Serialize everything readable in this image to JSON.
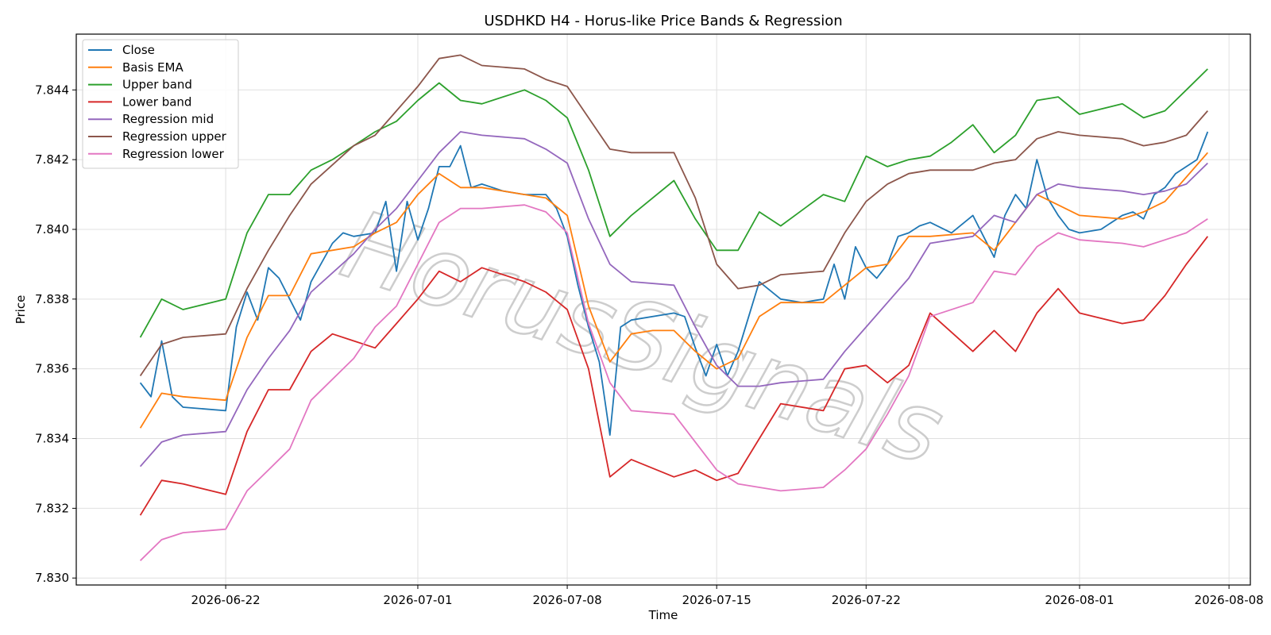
{
  "watermark": "HorusSignals",
  "chart_data": {
    "type": "line",
    "title": "USDHKD H4 - Horus-like Price Bands & Regression",
    "xlabel": "Time",
    "ylabel": "Price",
    "x_ticks": [
      "2026-06-22",
      "2026-07-01",
      "2026-07-08",
      "2026-07-15",
      "2026-07-22",
      "2026-08-01",
      "2026-08-08"
    ],
    "y_ticks": [
      "7.830",
      "7.832",
      "7.834",
      "7.836",
      "7.838",
      "7.840",
      "7.842",
      "7.844"
    ],
    "xlim": [
      "2026-06-15",
      "2026-08-09"
    ],
    "ylim": [
      7.8298,
      7.8456
    ],
    "grid": true,
    "legend_position": "top-left",
    "series": [
      {
        "name": "Close",
        "color": "#1f77b4",
        "x": [
          "2026-06-18",
          "2026-06-18T12",
          "2026-06-19",
          "2026-06-19T12",
          "2026-06-20",
          "2026-06-22",
          "2026-06-22T12",
          "2026-06-23",
          "2026-06-23T12",
          "2026-06-24",
          "2026-06-24T12",
          "2026-06-25",
          "2026-06-25T12",
          "2026-06-26",
          "2026-06-27",
          "2026-06-27T12",
          "2026-06-28",
          "2026-06-29",
          "2026-06-29T12",
          "2026-06-30",
          "2026-06-30T12",
          "2026-07-01",
          "2026-07-01T12",
          "2026-07-02",
          "2026-07-02T12",
          "2026-07-03",
          "2026-07-03T12",
          "2026-07-04",
          "2026-07-05",
          "2026-07-06",
          "2026-07-06T12",
          "2026-07-07",
          "2026-07-07T12",
          "2026-07-08",
          "2026-07-08T12",
          "2026-07-09",
          "2026-07-09T12",
          "2026-07-10",
          "2026-07-10T12",
          "2026-07-11",
          "2026-07-13",
          "2026-07-13T12",
          "2026-07-14",
          "2026-07-14T12",
          "2026-07-15",
          "2026-07-15T12",
          "2026-07-16",
          "2026-07-16T12",
          "2026-07-17",
          "2026-07-18",
          "2026-07-19",
          "2026-07-20",
          "2026-07-20T12",
          "2026-07-21",
          "2026-07-21T12",
          "2026-07-22",
          "2026-07-22T12",
          "2026-07-23",
          "2026-07-23T12",
          "2026-07-24",
          "2026-07-24T12",
          "2026-07-25",
          "2026-07-26",
          "2026-07-27",
          "2026-07-27T12",
          "2026-07-28",
          "2026-07-28T12",
          "2026-07-29",
          "2026-07-29T12",
          "2026-07-30",
          "2026-07-30T12",
          "2026-07-31",
          "2026-07-31T12",
          "2026-08-01",
          "2026-08-02",
          "2026-08-03",
          "2026-08-03T12",
          "2026-08-04",
          "2026-08-04T12",
          "2026-08-05",
          "2026-08-05T12",
          "2026-08-06",
          "2026-08-06T12",
          "2026-08-07"
        ],
        "values": [
          7.8356,
          7.8352,
          7.8368,
          7.8352,
          7.8349,
          7.8348,
          7.8372,
          7.8382,
          7.8374,
          7.8389,
          7.8386,
          7.838,
          7.8374,
          7.8385,
          7.8396,
          7.8399,
          7.8398,
          7.8399,
          7.8408,
          7.8388,
          7.8408,
          7.8397,
          7.8406,
          7.8418,
          7.8418,
          7.8424,
          7.8412,
          7.8413,
          7.8411,
          7.841,
          7.841,
          7.841,
          7.8406,
          7.8398,
          7.8384,
          7.8372,
          7.8362,
          7.8341,
          7.8372,
          7.8374,
          7.8376,
          7.8375,
          7.8366,
          7.8358,
          7.8367,
          7.8358,
          7.8365,
          7.8375,
          7.8385,
          7.838,
          7.8379,
          7.838,
          7.839,
          7.838,
          7.8395,
          7.8389,
          7.8386,
          7.839,
          7.8398,
          7.8399,
          7.8401,
          7.8402,
          7.8399,
          7.8404,
          7.8398,
          7.8392,
          7.8404,
          7.841,
          7.8406,
          7.842,
          7.8409,
          7.8404,
          7.84,
          7.8399,
          7.84,
          7.8404,
          7.8405,
          7.8403,
          7.841,
          7.8412,
          7.8416,
          7.8418,
          7.842,
          7.8428
        ]
      },
      {
        "name": "Basis EMA",
        "color": "#ff7f0e",
        "x": [
          "2026-06-18",
          "2026-06-19",
          "2026-06-20",
          "2026-06-22",
          "2026-06-23",
          "2026-06-24",
          "2026-06-25",
          "2026-06-26",
          "2026-06-27",
          "2026-06-28",
          "2026-06-29",
          "2026-06-30",
          "2026-07-01",
          "2026-07-02",
          "2026-07-03",
          "2026-07-04",
          "2026-07-06",
          "2026-07-07",
          "2026-07-08",
          "2026-07-09",
          "2026-07-10",
          "2026-07-11",
          "2026-07-12",
          "2026-07-13",
          "2026-07-14",
          "2026-07-15",
          "2026-07-16",
          "2026-07-17",
          "2026-07-18",
          "2026-07-20",
          "2026-07-21",
          "2026-07-22",
          "2026-07-23",
          "2026-07-24",
          "2026-07-25",
          "2026-07-27",
          "2026-07-28",
          "2026-07-29",
          "2026-07-30",
          "2026-07-31",
          "2026-08-01",
          "2026-08-03",
          "2026-08-04",
          "2026-08-05",
          "2026-08-06",
          "2026-08-07"
        ],
        "values": [
          7.8343,
          7.8353,
          7.8352,
          7.8351,
          7.8369,
          7.8381,
          7.8381,
          7.8393,
          7.8394,
          7.8395,
          7.8399,
          7.8402,
          7.841,
          7.8416,
          7.8412,
          7.8412,
          7.841,
          7.8409,
          7.8404,
          7.8378,
          7.8362,
          7.837,
          7.8371,
          7.8371,
          7.8365,
          7.836,
          7.8363,
          7.8375,
          7.8379,
          7.8379,
          7.8384,
          7.8389,
          7.839,
          7.8398,
          7.8398,
          7.8399,
          7.8394,
          7.8402,
          7.841,
          7.8407,
          7.8404,
          7.8403,
          7.8405,
          7.8408,
          7.8415,
          7.8422
        ]
      },
      {
        "name": "Upper band",
        "color": "#2ca02c",
        "x": [
          "2026-06-18",
          "2026-06-19",
          "2026-06-20",
          "2026-06-22",
          "2026-06-23",
          "2026-06-24",
          "2026-06-25",
          "2026-06-26",
          "2026-06-27",
          "2026-06-28",
          "2026-06-29",
          "2026-06-30",
          "2026-07-01",
          "2026-07-02",
          "2026-07-03",
          "2026-07-04",
          "2026-07-06",
          "2026-07-07",
          "2026-07-08",
          "2026-07-09",
          "2026-07-10",
          "2026-07-11",
          "2026-07-13",
          "2026-07-14",
          "2026-07-15",
          "2026-07-16",
          "2026-07-17",
          "2026-07-18",
          "2026-07-20",
          "2026-07-21",
          "2026-07-22",
          "2026-07-23",
          "2026-07-24",
          "2026-07-25",
          "2026-07-26",
          "2026-07-27",
          "2026-07-28",
          "2026-07-29",
          "2026-07-30",
          "2026-07-31",
          "2026-08-01",
          "2026-08-03",
          "2026-08-04",
          "2026-08-05",
          "2026-08-06",
          "2026-08-07"
        ],
        "values": [
          7.8369,
          7.838,
          7.8377,
          7.838,
          7.8399,
          7.841,
          7.841,
          7.8417,
          7.842,
          7.8424,
          7.8428,
          7.8431,
          7.8437,
          7.8442,
          7.8437,
          7.8436,
          7.844,
          7.8437,
          7.8432,
          7.8417,
          7.8398,
          7.8404,
          7.8414,
          7.8403,
          7.8394,
          7.8394,
          7.8405,
          7.8401,
          7.841,
          7.8408,
          7.8421,
          7.8418,
          7.842,
          7.8421,
          7.8425,
          7.843,
          7.8422,
          7.8427,
          7.8437,
          7.8438,
          7.8433,
          7.8436,
          7.8432,
          7.8434,
          7.844,
          7.8446
        ]
      },
      {
        "name": "Lower band",
        "color": "#d62728",
        "x": [
          "2026-06-18",
          "2026-06-19",
          "2026-06-20",
          "2026-06-22",
          "2026-06-23",
          "2026-06-24",
          "2026-06-25",
          "2026-06-26",
          "2026-06-27",
          "2026-06-28",
          "2026-06-29",
          "2026-06-30",
          "2026-07-01",
          "2026-07-02",
          "2026-07-03",
          "2026-07-04",
          "2026-07-06",
          "2026-07-07",
          "2026-07-08",
          "2026-07-09",
          "2026-07-10",
          "2026-07-11",
          "2026-07-13",
          "2026-07-14",
          "2026-07-15",
          "2026-07-16",
          "2026-07-17",
          "2026-07-18",
          "2026-07-20",
          "2026-07-21",
          "2026-07-22",
          "2026-07-23",
          "2026-07-24",
          "2026-07-25",
          "2026-07-27",
          "2026-07-28",
          "2026-07-29",
          "2026-07-30",
          "2026-07-31",
          "2026-08-01",
          "2026-08-03",
          "2026-08-04",
          "2026-08-05",
          "2026-08-06",
          "2026-08-07"
        ],
        "values": [
          7.8318,
          7.8328,
          7.8327,
          7.8324,
          7.8342,
          7.8354,
          7.8354,
          7.8365,
          7.837,
          7.8368,
          7.8366,
          7.8373,
          7.838,
          7.8388,
          7.8385,
          7.8389,
          7.8385,
          7.8382,
          7.8377,
          7.836,
          7.8329,
          7.8334,
          7.8329,
          7.8331,
          7.8328,
          7.833,
          7.834,
          7.835,
          7.8348,
          7.836,
          7.8361,
          7.8356,
          7.8361,
          7.8376,
          7.8365,
          7.8371,
          7.8365,
          7.8376,
          7.8383,
          7.8376,
          7.8373,
          7.8374,
          7.8381,
          7.839,
          7.8398
        ]
      },
      {
        "name": "Regression mid",
        "color": "#9467bd",
        "x": [
          "2026-06-18",
          "2026-06-19",
          "2026-06-20",
          "2026-06-22",
          "2026-06-23",
          "2026-06-24",
          "2026-06-25",
          "2026-06-26",
          "2026-06-28",
          "2026-06-29",
          "2026-06-30",
          "2026-07-01",
          "2026-07-02",
          "2026-07-03",
          "2026-07-04",
          "2026-07-06",
          "2026-07-07",
          "2026-07-08",
          "2026-07-09",
          "2026-07-10",
          "2026-07-11",
          "2026-07-13",
          "2026-07-14",
          "2026-07-15",
          "2026-07-16",
          "2026-07-17",
          "2026-07-18",
          "2026-07-20",
          "2026-07-21",
          "2026-07-22",
          "2026-07-23",
          "2026-07-24",
          "2026-07-25",
          "2026-07-27",
          "2026-07-28",
          "2026-07-29",
          "2026-07-30",
          "2026-07-31",
          "2026-08-01",
          "2026-08-03",
          "2026-08-04",
          "2026-08-05",
          "2026-08-06",
          "2026-08-07"
        ],
        "values": [
          7.8332,
          7.8339,
          7.8341,
          7.8342,
          7.8354,
          7.8363,
          7.8371,
          7.8382,
          7.8393,
          7.84,
          7.8406,
          7.8414,
          7.8422,
          7.8428,
          7.8427,
          7.8426,
          7.8423,
          7.8419,
          7.8403,
          7.839,
          7.8385,
          7.8384,
          7.8372,
          7.8361,
          7.8355,
          7.8355,
          7.8356,
          7.8357,
          7.8365,
          7.8372,
          7.8379,
          7.8386,
          7.8396,
          7.8398,
          7.8404,
          7.8402,
          7.841,
          7.8413,
          7.8412,
          7.8411,
          7.841,
          7.8411,
          7.8413,
          7.8419
        ]
      },
      {
        "name": "Regression upper",
        "color": "#8c564b",
        "x": [
          "2026-06-18",
          "2026-06-19",
          "2026-06-20",
          "2026-06-22",
          "2026-06-23",
          "2026-06-24",
          "2026-06-25",
          "2026-06-26",
          "2026-06-28",
          "2026-06-29",
          "2026-06-30",
          "2026-07-01",
          "2026-07-02",
          "2026-07-03",
          "2026-07-04",
          "2026-07-06",
          "2026-07-07",
          "2026-07-08",
          "2026-07-09",
          "2026-07-10",
          "2026-07-11",
          "2026-07-13",
          "2026-07-14",
          "2026-07-15",
          "2026-07-16",
          "2026-07-17",
          "2026-07-18",
          "2026-07-20",
          "2026-07-21",
          "2026-07-22",
          "2026-07-23",
          "2026-07-24",
          "2026-07-25",
          "2026-07-27",
          "2026-07-28",
          "2026-07-29",
          "2026-07-30",
          "2026-07-31",
          "2026-08-01",
          "2026-08-03",
          "2026-08-04",
          "2026-08-05",
          "2026-08-06",
          "2026-08-07"
        ],
        "values": [
          7.8358,
          7.8367,
          7.8369,
          7.837,
          7.8383,
          7.8394,
          7.8404,
          7.8413,
          7.8424,
          7.8427,
          7.8434,
          7.8441,
          7.8449,
          7.845,
          7.8447,
          7.8446,
          7.8443,
          7.8441,
          7.8432,
          7.8423,
          7.8422,
          7.8422,
          7.8409,
          7.839,
          7.8383,
          7.8384,
          7.8387,
          7.8388,
          7.8399,
          7.8408,
          7.8413,
          7.8416,
          7.8417,
          7.8417,
          7.8419,
          7.842,
          7.8426,
          7.8428,
          7.8427,
          7.8426,
          7.8424,
          7.8425,
          7.8427,
          7.8434
        ]
      },
      {
        "name": "Regression lower",
        "color": "#e377c2",
        "x": [
          "2026-06-18",
          "2026-06-19",
          "2026-06-20",
          "2026-06-22",
          "2026-06-23",
          "2026-06-24",
          "2026-06-25",
          "2026-06-26",
          "2026-06-28",
          "2026-06-29",
          "2026-06-30",
          "2026-07-01",
          "2026-07-02",
          "2026-07-03",
          "2026-07-04",
          "2026-07-06",
          "2026-07-07",
          "2026-07-08",
          "2026-07-09",
          "2026-07-10",
          "2026-07-11",
          "2026-07-13",
          "2026-07-14",
          "2026-07-15",
          "2026-07-16",
          "2026-07-17",
          "2026-07-18",
          "2026-07-20",
          "2026-07-21",
          "2026-07-22",
          "2026-07-23",
          "2026-07-24",
          "2026-07-25",
          "2026-07-27",
          "2026-07-28",
          "2026-07-29",
          "2026-07-30",
          "2026-07-31",
          "2026-08-01",
          "2026-08-03",
          "2026-08-04",
          "2026-08-05",
          "2026-08-06",
          "2026-08-07"
        ],
        "values": [
          7.8305,
          7.8311,
          7.8313,
          7.8314,
          7.8325,
          7.8331,
          7.8337,
          7.8351,
          7.8363,
          7.8372,
          7.8378,
          7.839,
          7.8402,
          7.8406,
          7.8406,
          7.8407,
          7.8405,
          7.8399,
          7.8373,
          7.8356,
          7.8348,
          7.8347,
          7.8339,
          7.8331,
          7.8327,
          7.8326,
          7.8325,
          7.8326,
          7.8331,
          7.8337,
          7.8347,
          7.8358,
          7.8375,
          7.8379,
          7.8388,
          7.8387,
          7.8395,
          7.8399,
          7.8397,
          7.8396,
          7.8395,
          7.8397,
          7.8399,
          7.8403
        ]
      }
    ]
  }
}
